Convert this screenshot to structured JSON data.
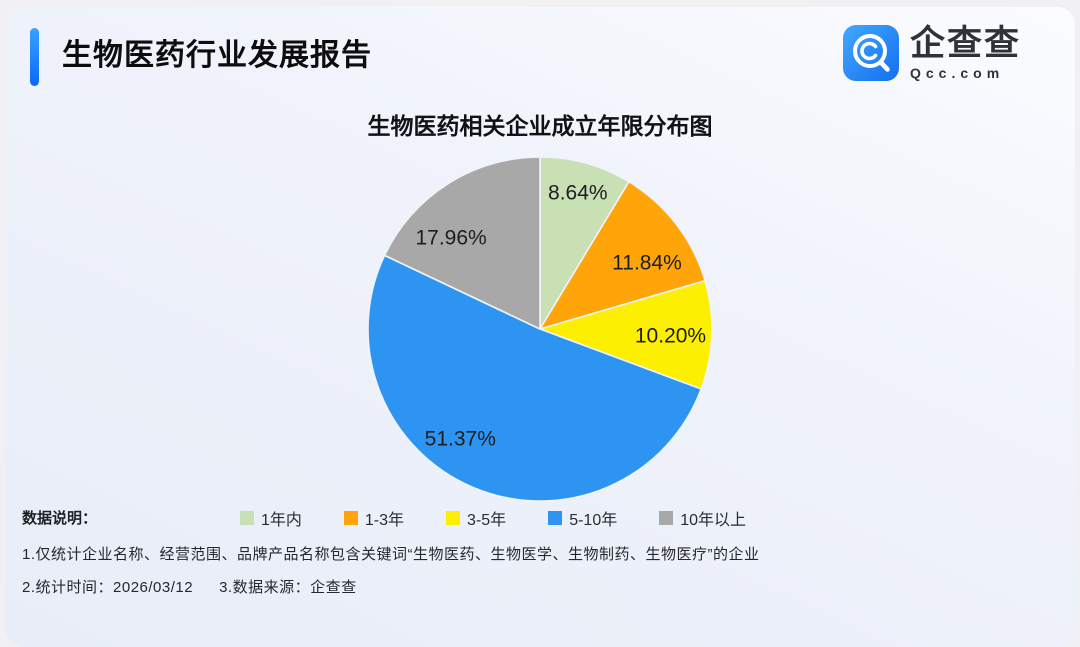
{
  "header": {
    "title": "生物医药行业发展报告",
    "logo_name": "企查查",
    "logo_domain": "Qcc.com"
  },
  "chart_data": {
    "type": "pie",
    "title": "生物医药相关企业成立年限分布图",
    "categories": [
      "1年内",
      "1-3年",
      "3-5年",
      "5-10年",
      "10年以上"
    ],
    "values": [
      8.64,
      11.84,
      10.2,
      51.37,
      17.96
    ],
    "labels": [
      "8.64%",
      "11.84%",
      "10.20%",
      "51.37%",
      "17.96%"
    ],
    "colors": [
      "#c9e0b4",
      "#ffa50a",
      "#fcf000",
      "#2e94f2",
      "#a8a8a8"
    ],
    "legend_position": "bottom",
    "label_position": "inside",
    "start_angle_deg": 0,
    "direction": "clockwise"
  },
  "footnotes": {
    "heading": "数据说明：",
    "line1": "1.仅统计企业名称、经营范围、品牌产品名称包含关键词“生物医药、生物医学、生物制药、生物医疗”的企业",
    "line2_time": "2.统计时间：2026/03/12",
    "line2_source": "3.数据来源：企查查"
  },
  "theme": {
    "accent_blue": "#0c68f7",
    "label_text": "#1d1e20",
    "slice_gap_color": "#f0f3fa"
  }
}
